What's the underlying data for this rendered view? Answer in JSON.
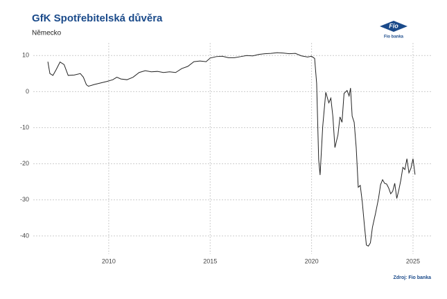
{
  "chart_data": {
    "type": "line",
    "title": "GfK Spotřebitelská důvěra",
    "subtitle": "Německo",
    "source": "Zdroj: Fio banka",
    "logo": {
      "mark": "Fio",
      "name": "Fio banka"
    },
    "x": [
      2007.0,
      2007.1,
      2007.25,
      2007.4,
      2007.6,
      2007.8,
      2008.0,
      2008.3,
      2008.6,
      2008.75,
      2008.9,
      2009.0,
      2009.3,
      2009.6,
      2009.9,
      2010.2,
      2010.4,
      2010.6,
      2010.9,
      2011.2,
      2011.5,
      2011.8,
      2012.1,
      2012.4,
      2012.7,
      2013.0,
      2013.3,
      2013.6,
      2013.9,
      2014.2,
      2014.5,
      2014.8,
      2015.0,
      2015.3,
      2015.6,
      2015.9,
      2016.2,
      2016.5,
      2016.8,
      2017.1,
      2017.4,
      2017.7,
      2018.0,
      2018.3,
      2018.6,
      2018.9,
      2019.2,
      2019.5,
      2019.8,
      2020.0,
      2020.15,
      2020.25,
      2020.35,
      2020.42,
      2020.55,
      2020.7,
      2020.85,
      2020.95,
      2021.05,
      2021.15,
      2021.3,
      2021.4,
      2021.5,
      2021.6,
      2021.75,
      2021.85,
      2021.92,
      2022.0,
      2022.1,
      2022.2,
      2022.3,
      2022.4,
      2022.5,
      2022.6,
      2022.7,
      2022.8,
      2022.9,
      2023.0,
      2023.15,
      2023.3,
      2023.4,
      2023.5,
      2023.6,
      2023.7,
      2023.8,
      2023.9,
      2024.0,
      2024.1,
      2024.2,
      2024.3,
      2024.4,
      2024.5,
      2024.6,
      2024.7,
      2024.8,
      2024.9,
      2025.0,
      2025.1
    ],
    "series": [
      {
        "name": "GfK",
        "color": "#222222",
        "values": [
          8.3,
          5,
          4.5,
          6,
          8.2,
          7.5,
          4.5,
          4.6,
          5,
          4,
          1.9,
          1.5,
          2,
          2.4,
          2.8,
          3.3,
          4,
          3.5,
          3.3,
          4,
          5.3,
          5.8,
          5.5,
          5.6,
          5.3,
          5.5,
          5.3,
          6.4,
          7,
          8.3,
          8.5,
          8.3,
          9.3,
          9.7,
          9.8,
          9.4,
          9.4,
          9.7,
          10,
          9.9,
          10.3,
          10.5,
          10.6,
          10.8,
          10.7,
          10.5,
          10.6,
          9.9,
          9.6,
          9.8,
          9.2,
          2.3,
          -18.9,
          -23.1,
          -9.6,
          -0.2,
          -3.1,
          -1.8,
          -6.9,
          -15.5,
          -12,
          -7,
          -8.5,
          -0.5,
          0.3,
          -1.2,
          1,
          -6.8,
          -8.5,
          -15.5,
          -26.5,
          -26,
          -30.6,
          -36.8,
          -42.5,
          -42.8,
          -41.9,
          -37.6,
          -33.8,
          -29.6,
          -25.8,
          -24.4,
          -25.4,
          -25.6,
          -26.7,
          -28.3,
          -27.6,
          -25.4,
          -29.6,
          -27.3,
          -24.5,
          -21,
          -21.6,
          -18.6,
          -22.5,
          -21.2,
          -18.6,
          -23
        ]
      }
    ],
    "xlim": [
      2006.28,
      2025.89
    ],
    "xticks": [
      2010,
      2015,
      2020,
      2025
    ],
    "ylim": [
      -45,
      13.5
    ],
    "yticks": [
      10,
      0,
      -10,
      -20,
      -30,
      -40
    ],
    "grid": true
  }
}
